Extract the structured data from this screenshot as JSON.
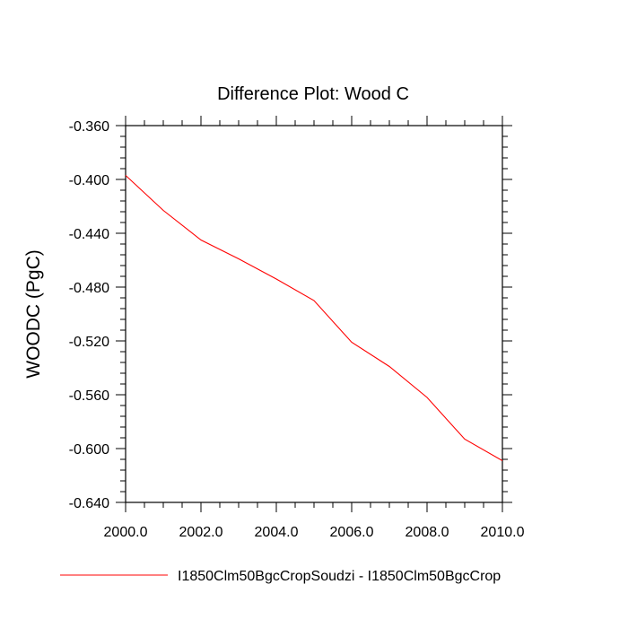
{
  "chart_data": {
    "type": "line",
    "title": "Difference Plot: Wood C",
    "xlabel": "",
    "ylabel": "WOODC  (PgC)",
    "xlim": [
      2000,
      2010
    ],
    "ylim": [
      -0.64,
      -0.36
    ],
    "x_ticks": [
      "2000.0",
      "2002.0",
      "2004.0",
      "2006.0",
      "2008.0",
      "2010.0"
    ],
    "y_ticks": [
      "-0.360",
      "-0.400",
      "-0.440",
      "-0.480",
      "-0.520",
      "-0.560",
      "-0.600",
      "-0.640"
    ],
    "grid": false,
    "legend_position": "bottom",
    "series": [
      {
        "name": "I1850Clm50BgcCropSoudzi - I1850Clm50BgcCrop",
        "color": "#ff0000",
        "x": [
          2000,
          2001,
          2002,
          2003,
          2004,
          2005,
          2006,
          2007,
          2008,
          2009,
          2010
        ],
        "y": [
          -0.397,
          -0.423,
          -0.445,
          -0.459,
          -0.474,
          -0.49,
          -0.521,
          -0.539,
          -0.562,
          -0.593,
          -0.609
        ]
      }
    ]
  }
}
